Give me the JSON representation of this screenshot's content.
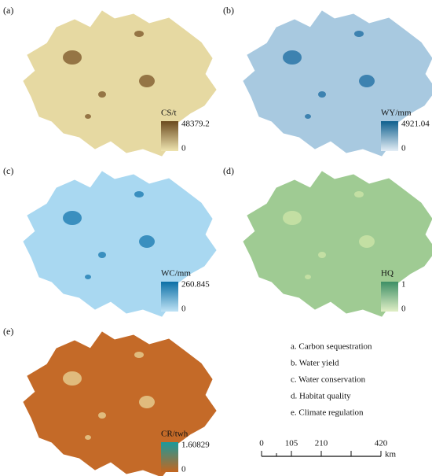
{
  "panels": [
    {
      "label": "(a)",
      "legend_title": "CS/t",
      "max": 48379.2,
      "min": 0
    },
    {
      "label": "(b)",
      "legend_title": "WY/mm",
      "max": 4921.04,
      "min": 0
    },
    {
      "label": "(c)",
      "legend_title": "WC/mm",
      "max": 260.845,
      "min": 0
    },
    {
      "label": "(d)",
      "legend_title": "HQ",
      "max": 1,
      "min": 0
    },
    {
      "label": "(e)",
      "legend_title": "CR/twh",
      "max": 1.60829,
      "min": 0
    }
  ],
  "notes": [
    "a. Carbon sequestration",
    "b. Water yield",
    "c. Water conservation",
    "d. Habitat quality",
    "e. Climate regulation"
  ],
  "scale_bar": {
    "ticks": [
      0,
      105,
      210,
      420
    ],
    "unit": "km"
  }
}
